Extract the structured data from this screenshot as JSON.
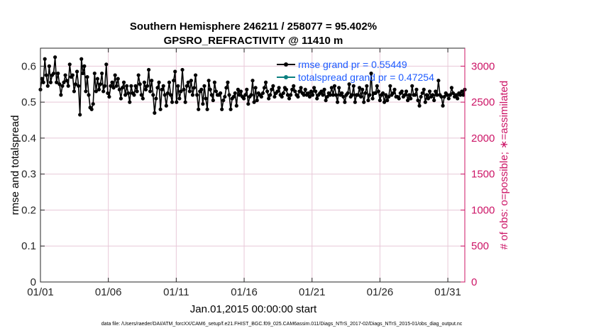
{
  "chart_data": {
    "type": "line",
    "title_line1": "Southern Hemisphere 246211 / 258077 = 95.402%",
    "title_line2": "GPSRO_REFRACTIVITY @ 11410 m",
    "xlabel": "Jan.01,2015 00:00:00 start",
    "ylabel_left": "rmse and totalspread",
    "ylabel_right": "# of obs: o=possible; ∗=assimilated",
    "footer": "data file: /Users/raeder/DAI/ATM_forcXX/CAM6_setup/f.e21.FHIST_BGC.f09_025.CAM6assim.011/Diags_NTrS_2017-02/Diags_NTrS_2015-01/obs_diag_output.nc",
    "x_ticks": [
      {
        "v": 1,
        "label": "01/01"
      },
      {
        "v": 6,
        "label": "01/06"
      },
      {
        "v": 11,
        "label": "01/11"
      },
      {
        "v": 16,
        "label": "01/16"
      },
      {
        "v": 21,
        "label": "01/21"
      },
      {
        "v": 26,
        "label": "01/26"
      },
      {
        "v": 31,
        "label": "01/31"
      }
    ],
    "xlim": [
      1,
      32.25
    ],
    "ylim_left": [
      0,
      0.65
    ],
    "y_ticks_left": [
      "0",
      "0.1",
      "0.2",
      "0.3",
      "0.4",
      "0.5",
      "0.6"
    ],
    "ylim_right": [
      0,
      3250
    ],
    "y_ticks_right": [
      "0",
      "500",
      "1000",
      "1500",
      "2000",
      "2500",
      "3000"
    ],
    "grid": true,
    "legend_position": "top-right",
    "colors": {
      "rmse": "#000000",
      "spread": "#0b7f7f",
      "obs": "#cc1466",
      "legend_text": "#1e5bff",
      "grid": "#e8c8d8",
      "right_axis": "#cc1466"
    },
    "series": [
      {
        "name": "rmse grand pr = 0.55449",
        "color": "#000000",
        "values": [
          0.535,
          0.565,
          0.555,
          0.62,
          0.575,
          0.545,
          0.6,
          0.555,
          0.575,
          0.58,
          0.625,
          0.555,
          0.58,
          0.55,
          0.52,
          0.545,
          0.555,
          0.575,
          0.56,
          0.545,
          0.605,
          0.57,
          0.575,
          0.53,
          0.55,
          0.585,
          0.545,
          0.465,
          0.62,
          0.58,
          0.6,
          0.53,
          0.57,
          0.52,
          0.485,
          0.48,
          0.495,
          0.58,
          0.53,
          0.565,
          0.535,
          0.55,
          0.58,
          0.53,
          0.545,
          0.605,
          0.525,
          0.515,
          0.545,
          0.555,
          0.54,
          0.575,
          0.545,
          0.565,
          0.535,
          0.51,
          0.54,
          0.555,
          0.52,
          0.545,
          0.525,
          0.5,
          0.545,
          0.525,
          0.52,
          0.545,
          0.53,
          0.575,
          0.55,
          0.52,
          0.51,
          0.555,
          0.535,
          0.545,
          0.59,
          0.53,
          0.56,
          0.52,
          0.47,
          0.51,
          0.54,
          0.555,
          0.48,
          0.535,
          0.545,
          0.52,
          0.49,
          0.525,
          0.555,
          0.52,
          0.5,
          0.56,
          0.585,
          0.5,
          0.545,
          0.51,
          0.53,
          0.59,
          0.535,
          0.5,
          0.545,
          0.555,
          0.53,
          0.56,
          0.52,
          0.54,
          0.575,
          0.52,
          0.48,
          0.53,
          0.535,
          0.495,
          0.545,
          0.51,
          0.48,
          0.56,
          0.535,
          0.52,
          0.505,
          0.555,
          0.53,
          0.52,
          0.52,
          0.525,
          0.48,
          0.505,
          0.515,
          0.54,
          0.555,
          0.52,
          0.48,
          0.51,
          0.515,
          0.525,
          0.49,
          0.535,
          0.52,
          0.53,
          0.515,
          0.51,
          0.52,
          0.535,
          0.495,
          0.515,
          0.52,
          0.56,
          0.5,
          0.54,
          0.505,
          0.525,
          0.52,
          0.515,
          0.525,
          0.54,
          0.555,
          0.53,
          0.51,
          0.52,
          0.535,
          0.545,
          0.515,
          0.525,
          0.53,
          0.54,
          0.52,
          0.515,
          0.525,
          0.54,
          0.535,
          0.52,
          0.51,
          0.52,
          0.535,
          0.545,
          0.53,
          0.52,
          0.515,
          0.53,
          0.54,
          0.525,
          0.52,
          0.535,
          0.52,
          0.525,
          0.515,
          0.53,
          0.52,
          0.54,
          0.53,
          0.51,
          0.52,
          0.525,
          0.53,
          0.52,
          0.535,
          0.505,
          0.515,
          0.525,
          0.52,
          0.54,
          0.52,
          0.545,
          0.52,
          0.5,
          0.54,
          0.52,
          0.525,
          0.515,
          0.5,
          0.52,
          0.525,
          0.55,
          0.515,
          0.52,
          0.545,
          0.5,
          0.52,
          0.52,
          0.54,
          0.515,
          0.535,
          0.5,
          0.525,
          0.545,
          0.505,
          0.52,
          0.58,
          0.51,
          0.525,
          0.525,
          0.545,
          0.53,
          0.505,
          0.52,
          0.525,
          0.5,
          0.52,
          0.505,
          0.515,
          0.545,
          0.52,
          0.525,
          0.535,
          0.515,
          0.515,
          0.51,
          0.525,
          0.53,
          0.515,
          0.52,
          0.53,
          0.505,
          0.52,
          0.51,
          0.545,
          0.52,
          0.52,
          0.535,
          0.505,
          0.49,
          0.515,
          0.525,
          0.535,
          0.5,
          0.52,
          0.51,
          0.53,
          0.515,
          0.52,
          0.505,
          0.53,
          0.52,
          0.56,
          0.52,
          0.515,
          0.49,
          0.515,
          0.525,
          0.52,
          0.51,
          0.52,
          0.54,
          0.525,
          0.515,
          0.52,
          0.51,
          0.525,
          0.52,
          0.53,
          0.52,
          0.535
        ]
      },
      {
        "name": "totalspread grand pr = 0.47254",
        "color": "#0b7f7f",
        "values": []
      }
    ]
  }
}
